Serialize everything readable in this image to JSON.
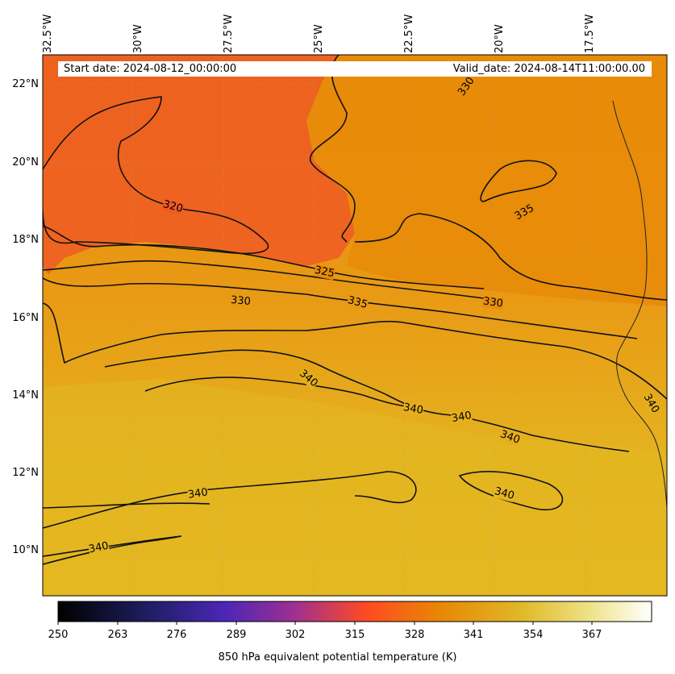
{
  "map": {
    "start_date_text": "Start date: 2024-08-12_00:00:00",
    "valid_date_text": "Valid_date: 2024-08-14T11:00:00.00",
    "lon_labels": [
      "32.5°W",
      "30°W",
      "27.5°W",
      "25°W",
      "22.5°W",
      "20°W",
      "17.5°W"
    ],
    "lat_labels": [
      "22°N",
      "20°N",
      "18°N",
      "16°N",
      "14°N",
      "12°N",
      "10°N"
    ],
    "contour_labels": [
      "330",
      "320",
      "335",
      "325",
      "330",
      "335",
      "330",
      "340",
      "340",
      "340",
      "340",
      "340",
      "340",
      "340",
      "340"
    ],
    "variable": "850 hPa equivalent potential temperature (K)",
    "colors": {
      "warm_orange": "#f05a24",
      "mid_orange": "#e98c0a",
      "yellow": "#e4b623"
    }
  },
  "colorbar": {
    "label": "850 hPa equivalent potential temperature (K)",
    "ticks": [
      "250",
      "263",
      "276",
      "289",
      "302",
      "315",
      "328",
      "341",
      "354",
      "367"
    ],
    "colormap": "CMRmap-like: black → indigo → purple → red-orange → orange → yellow → pale cream"
  }
}
